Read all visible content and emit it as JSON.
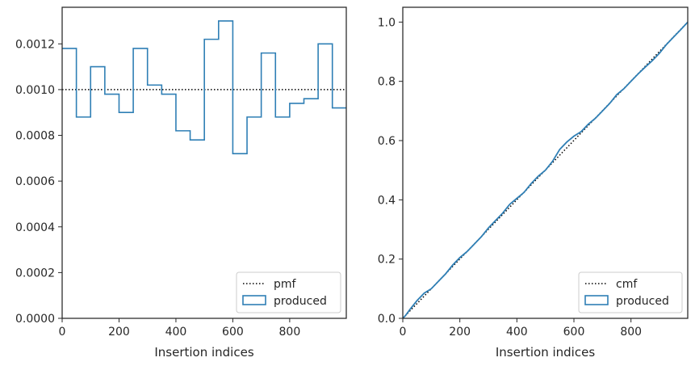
{
  "chart_data": [
    {
      "type": "step-histogram",
      "xlabel": "Insertion indices",
      "ylabel": "",
      "xlim": [
        0,
        999
      ],
      "ylim": [
        0,
        0.00136
      ],
      "xticks": [
        0,
        200,
        400,
        600,
        800
      ],
      "xtick_labels": [
        "0",
        "200",
        "400",
        "600",
        "800"
      ],
      "yticks": [
        0,
        0.0002,
        0.0004,
        0.0006,
        0.0008,
        0.001,
        0.0012
      ],
      "ytick_labels": [
        "0.0000",
        "0.0002",
        "0.0004",
        "0.0006",
        "0.0008",
        "0.0010",
        "0.0012"
      ],
      "reference_line": {
        "name": "pmf",
        "y": 0.001,
        "style": "dotted",
        "color": "#000000"
      },
      "series": [
        {
          "name": "produced",
          "color": "#2f7fb5",
          "bin_edges": [
            0,
            50,
            100,
            150,
            200,
            250,
            300,
            350,
            400,
            450,
            500,
            550,
            600,
            650,
            700,
            750,
            800,
            850,
            900,
            950,
            999
          ],
          "values": [
            0.00118,
            0.00088,
            0.0011,
            0.00098,
            0.0009,
            0.00118,
            0.00102,
            0.00098,
            0.00082,
            0.00078,
            0.00122,
            0.0013,
            0.00072,
            0.00088,
            0.00116,
            0.00088,
            0.00094,
            0.00096,
            0.0012,
            0.00092
          ]
        }
      ],
      "legend": {
        "placement": "lower-right",
        "entries": [
          "pmf",
          "produced"
        ]
      },
      "grid": false
    },
    {
      "type": "line",
      "xlabel": "Insertion indices",
      "ylabel": "",
      "xlim": [
        0,
        999
      ],
      "ylim": [
        0,
        1.05
      ],
      "xticks": [
        0,
        200,
        400,
        600,
        800
      ],
      "xtick_labels": [
        "0",
        "200",
        "400",
        "600",
        "800"
      ],
      "yticks": [
        0,
        0.2,
        0.4,
        0.6,
        0.8,
        1.0
      ],
      "ytick_labels": [
        "0.0",
        "0.2",
        "0.4",
        "0.6",
        "0.8",
        "1.0"
      ],
      "reference_line": {
        "name": "cmf",
        "from": [
          0,
          0
        ],
        "to": [
          999,
          1.0
        ],
        "style": "dotted",
        "color": "#000000"
      },
      "series": [
        {
          "name": "produced",
          "color": "#2f7fb5",
          "x": [
            0,
            10,
            25,
            50,
            75,
            100,
            125,
            150,
            175,
            200,
            225,
            250,
            275,
            300,
            325,
            350,
            375,
            400,
            425,
            450,
            475,
            500,
            525,
            550,
            575,
            600,
            625,
            650,
            675,
            700,
            725,
            750,
            775,
            800,
            825,
            850,
            875,
            900,
            925,
            950,
            975,
            999
          ],
          "y": [
            0,
            0.01,
            0.03,
            0.06,
            0.085,
            0.1,
            0.125,
            0.15,
            0.18,
            0.205,
            0.225,
            0.25,
            0.275,
            0.305,
            0.33,
            0.355,
            0.385,
            0.405,
            0.425,
            0.455,
            0.48,
            0.5,
            0.53,
            0.57,
            0.595,
            0.615,
            0.63,
            0.655,
            0.675,
            0.7,
            0.725,
            0.755,
            0.775,
            0.8,
            0.825,
            0.848,
            0.87,
            0.895,
            0.925,
            0.95,
            0.975,
            1.0
          ]
        }
      ],
      "legend": {
        "placement": "lower-right",
        "entries": [
          "cmf",
          "produced"
        ]
      },
      "grid": false
    }
  ]
}
